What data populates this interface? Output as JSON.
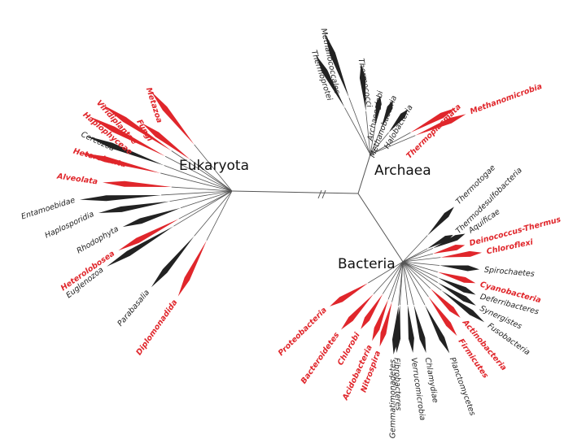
{
  "domains": [
    {
      "label": "Eukaryota"
    },
    {
      "label": "Archaea"
    },
    {
      "label": "Bacteria"
    }
  ],
  "taxa": [
    {
      "label": "Metazoa",
      "color": "#e0262b"
    },
    {
      "label": "Fungi",
      "color": "#e0262b"
    },
    {
      "label": "Viridiplantae",
      "color": "#e0262b"
    },
    {
      "label": "Haplophyceae",
      "color": "#e0262b"
    },
    {
      "label": "Cercozoa",
      "color": "#222222"
    },
    {
      "label": "Heterokonta",
      "color": "#e0262b"
    },
    {
      "label": "Alveolata",
      "color": "#e0262b"
    },
    {
      "label": "Entamoebidae",
      "color": "#222222"
    },
    {
      "label": "Haplosporidia",
      "color": "#222222"
    },
    {
      "label": "Rhodophyta",
      "color": "#222222"
    },
    {
      "label": "Heterolobosea",
      "color": "#e0262b"
    },
    {
      "label": "Euglenozoa",
      "color": "#222222"
    },
    {
      "label": "Parabasalia",
      "color": "#222222"
    },
    {
      "label": "Diplomonadida",
      "color": "#e0262b"
    },
    {
      "label": "Thermoprotei",
      "color": "#222222"
    },
    {
      "label": "Methanococcales",
      "color": "#222222"
    },
    {
      "label": "Thermococci",
      "color": "#222222"
    },
    {
      "label": "Archaeoglobi",
      "color": "#222222"
    },
    {
      "label": "Methanobacteria",
      "color": "#222222"
    },
    {
      "label": "Halobacteria",
      "color": "#222222"
    },
    {
      "label": "Thermoplasmata",
      "color": "#e0262b"
    },
    {
      "label": "Methanomicrobia",
      "color": "#e0262b"
    },
    {
      "label": "Thermotogae",
      "color": "#222222"
    },
    {
      "label": "Thermodesulfobacteria",
      "color": "#222222"
    },
    {
      "label": "Aquificae",
      "color": "#222222"
    },
    {
      "label": "Deinococcus-Thermus",
      "color": "#e0262b"
    },
    {
      "label": "Chloroflexi",
      "color": "#e0262b"
    },
    {
      "label": "Spirochaetes",
      "color": "#222222"
    },
    {
      "label": "Cyanobacteria",
      "color": "#e0262b"
    },
    {
      "label": "Deferribacteres",
      "color": "#222222"
    },
    {
      "label": "Synergistes",
      "color": "#222222"
    },
    {
      "label": "Fusobacteria",
      "color": "#222222"
    },
    {
      "label": "Actinobacteria",
      "color": "#e0262b"
    },
    {
      "label": "Firmicutes",
      "color": "#e0262b"
    },
    {
      "label": "Planctomycetes",
      "color": "#222222"
    },
    {
      "label": "Chlamydiae",
      "color": "#222222"
    },
    {
      "label": "Verrucomicrobia",
      "color": "#222222"
    },
    {
      "label": "Fibrobacteres",
      "color": "#222222"
    },
    {
      "label": "Gemmatimonadetes",
      "color": "#222222"
    },
    {
      "label": "Nitrospira",
      "color": "#e0262b"
    },
    {
      "label": "Acidobacteria",
      "color": "#e0262b"
    },
    {
      "label": "Chlorobi",
      "color": "#e0262b"
    },
    {
      "label": "Bacteroidetes",
      "color": "#e0262b"
    },
    {
      "label": "Proteobacteria",
      "color": "#e0262b"
    }
  ]
}
